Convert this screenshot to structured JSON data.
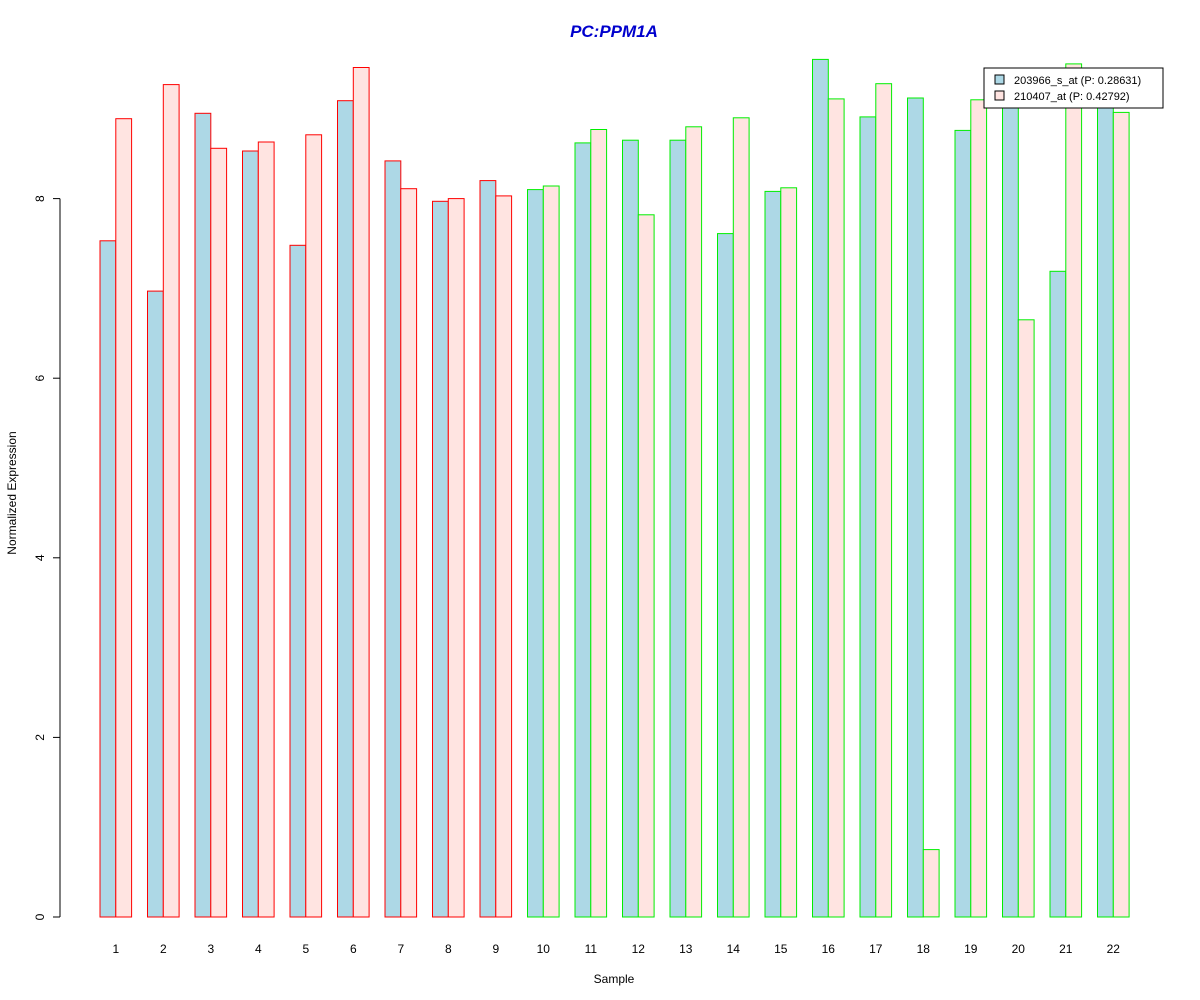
{
  "chart_data": {
    "type": "bar",
    "title": "PC:PPM1A",
    "xlabel": "Sample",
    "ylabel": "Normalized Expression",
    "categories": [
      "1",
      "2",
      "3",
      "4",
      "5",
      "6",
      "7",
      "8",
      "9",
      "10",
      "11",
      "12",
      "13",
      "14",
      "15",
      "16",
      "17",
      "18",
      "19",
      "20",
      "21",
      "22"
    ],
    "ylim": [
      0,
      9.6
    ],
    "yticks": [
      0,
      2,
      4,
      6,
      8
    ],
    "grid": false,
    "legend_position": "top-right",
    "series": [
      {
        "name": "203966_s_at (P: 0.28631)",
        "fill": "#add8e6",
        "values": [
          7.53,
          6.97,
          8.95,
          8.53,
          7.48,
          9.09,
          8.42,
          7.97,
          8.2,
          8.1,
          8.62,
          8.65,
          8.65,
          7.61,
          8.08,
          9.55,
          8.91,
          9.12,
          8.76,
          9.12,
          7.19,
          9.12
        ]
      },
      {
        "name": "210407_at (P: 0.42792)",
        "fill": "#ffe4e1",
        "values": [
          8.89,
          9.27,
          8.56,
          8.63,
          8.71,
          9.46,
          8.11,
          8.0,
          8.03,
          8.14,
          8.77,
          7.82,
          8.8,
          8.9,
          8.12,
          9.11,
          9.28,
          0.75,
          9.1,
          6.65,
          9.5,
          8.96
        ]
      }
    ],
    "group_outline": [
      "#ff0000",
      "#ff0000",
      "#ff0000",
      "#ff0000",
      "#ff0000",
      "#ff0000",
      "#ff0000",
      "#ff0000",
      "#ff0000",
      "#00ee00",
      "#00ee00",
      "#00ee00",
      "#00ee00",
      "#00ee00",
      "#00ee00",
      "#00ee00",
      "#00ee00",
      "#00ee00",
      "#00ee00",
      "#00ee00",
      "#00ee00",
      "#00ee00"
    ]
  },
  "colors": {
    "title": "#0000cd"
  }
}
